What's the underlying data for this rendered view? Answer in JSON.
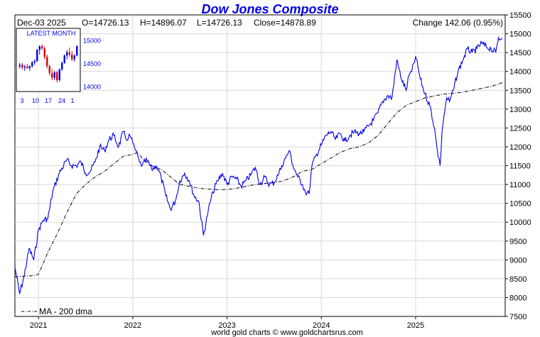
{
  "chart_data": {
    "type": "line",
    "title": "Dow Jones Composite",
    "date_label": "Dec-03  2025",
    "ohlc": {
      "open": "O=14726.13",
      "high": "H=14896.07",
      "low": "L=14726.13",
      "close": "Close=14878.89"
    },
    "change_text": "Change 142.06 (0.95%)",
    "y_ticks": [
      7500,
      8000,
      8500,
      9000,
      9500,
      10000,
      10500,
      11000,
      11500,
      12000,
      12500,
      13000,
      13500,
      14000,
      14500,
      15000,
      15500
    ],
    "ylim": [
      7500,
      15500
    ],
    "xlim": [
      2020.75,
      2025.95
    ],
    "x_ticks": [
      {
        "label": "2021",
        "x": 2021.0
      },
      {
        "label": "2022",
        "x": 2022.0
      },
      {
        "label": "2023",
        "x": 2023.0
      },
      {
        "label": "2024",
        "x": 2024.0
      },
      {
        "label": "2025",
        "x": 2025.0
      }
    ],
    "grid": true,
    "legend": {
      "position": "bottom-left",
      "items": [
        {
          "label": "MA - 200 dma",
          "style": "dash-dot",
          "color": "#000000"
        }
      ]
    },
    "series": [
      {
        "name": "Dow Jones Composite",
        "color": "#0000ee",
        "x": [
          2020.75,
          2020.8,
          2020.85,
          2020.9,
          2020.95,
          2021.0,
          2021.05,
          2021.1,
          2021.15,
          2021.22,
          2021.3,
          2021.35,
          2021.4,
          2021.45,
          2021.5,
          2021.55,
          2021.6,
          2021.65,
          2021.7,
          2021.75,
          2021.8,
          2021.85,
          2021.9,
          2021.93,
          2021.97,
          2022.0,
          2022.03,
          2022.07,
          2022.1,
          2022.15,
          2022.2,
          2022.25,
          2022.3,
          2022.35,
          2022.4,
          2022.45,
          2022.5,
          2022.55,
          2022.6,
          2022.65,
          2022.7,
          2022.75,
          2022.8,
          2022.85,
          2022.9,
          2022.95,
          2023.0,
          2023.05,
          2023.1,
          2023.15,
          2023.2,
          2023.25,
          2023.3,
          2023.35,
          2023.4,
          2023.45,
          2023.5,
          2023.55,
          2023.58,
          2023.62,
          2023.66,
          2023.7,
          2023.75,
          2023.8,
          2023.83,
          2023.87,
          2023.9,
          2023.95,
          2024.0,
          2024.05,
          2024.1,
          2024.15,
          2024.2,
          2024.25,
          2024.3,
          2024.35,
          2024.4,
          2024.45,
          2024.5,
          2024.55,
          2024.6,
          2024.65,
          2024.7,
          2024.75,
          2024.8,
          2024.85,
          2024.9,
          2024.93,
          2024.96,
          2025.0,
          2025.05,
          2025.1,
          2025.15,
          2025.2,
          2025.23,
          2025.26,
          2025.28,
          2025.3,
          2025.33,
          2025.36,
          2025.4,
          2025.45,
          2025.5,
          2025.55,
          2025.6,
          2025.65,
          2025.7,
          2025.75,
          2025.8,
          2025.85,
          2025.88,
          2025.9,
          2025.92
        ],
        "y": [
          8800,
          8100,
          8600,
          9300,
          9000,
          9800,
          10050,
          10100,
          10800,
          11300,
          11650,
          11500,
          11500,
          11600,
          11300,
          11350,
          11600,
          12000,
          11900,
          12200,
          12300,
          12000,
          12400,
          12200,
          12300,
          12100,
          11900,
          11600,
          11500,
          11650,
          11400,
          11500,
          11200,
          10700,
          10350,
          10550,
          11100,
          11300,
          11100,
          10700,
          10550,
          9650,
          10300,
          10800,
          11100,
          11300,
          11000,
          11200,
          11150,
          10950,
          11100,
          11250,
          11450,
          11000,
          11200,
          11000,
          11050,
          11300,
          11500,
          11700,
          11900,
          11500,
          11200,
          11000,
          10800,
          10750,
          11500,
          11800,
          12050,
          12300,
          12400,
          12200,
          12350,
          12150,
          12300,
          12400,
          12350,
          12400,
          12550,
          12700,
          12900,
          13200,
          13350,
          13300,
          14300,
          13800,
          13500,
          13900,
          14000,
          14400,
          13800,
          13400,
          13100,
          12500,
          11900,
          11500,
          12400,
          12800,
          13300,
          13200,
          13500,
          14000,
          14300,
          14600,
          14500,
          14600,
          14750,
          14650,
          14600,
          14500,
          14900,
          14850,
          14880
        ]
      },
      {
        "name": "MA - 200 dma",
        "color": "#000000",
        "style": "dash-dot",
        "x": [
          2020.75,
          2020.85,
          2020.95,
          2021.0,
          2021.1,
          2021.2,
          2021.3,
          2021.4,
          2021.5,
          2021.6,
          2021.7,
          2021.8,
          2021.9,
          2022.0,
          2022.05,
          2022.1,
          2022.2,
          2022.3,
          2022.4,
          2022.5,
          2022.6,
          2022.7,
          2022.8,
          2022.9,
          2023.0,
          2023.1,
          2023.2,
          2023.3,
          2023.4,
          2023.5,
          2023.6,
          2023.7,
          2023.8,
          2023.9,
          2024.0,
          2024.1,
          2024.2,
          2024.3,
          2024.4,
          2024.5,
          2024.6,
          2024.7,
          2024.8,
          2024.9,
          2025.0,
          2025.1,
          2025.2,
          2025.3,
          2025.4,
          2025.5,
          2025.6,
          2025.7,
          2025.8,
          2025.92
        ],
        "y": [
          8550,
          8570,
          8580,
          8620,
          9200,
          9700,
          10250,
          10750,
          11000,
          11200,
          11350,
          11550,
          11750,
          11800,
          11850,
          11700,
          11500,
          11400,
          11200,
          11000,
          10950,
          10900,
          10880,
          10860,
          10870,
          10900,
          10950,
          11000,
          11030,
          11050,
          11100,
          11200,
          11350,
          11400,
          11550,
          11700,
          11850,
          11950,
          12000,
          12100,
          12300,
          12600,
          12900,
          13100,
          13200,
          13300,
          13350,
          13400,
          13420,
          13450,
          13500,
          13550,
          13600,
          13700
        ]
      }
    ]
  },
  "inset": {
    "label": "LATEST MONTH",
    "y_ticks": [
      14000,
      14500,
      15000
    ],
    "ylim": [
      13950,
      15050
    ],
    "x_ticks": [
      "3",
      "10",
      "17",
      "24",
      "1"
    ],
    "candles": [
      {
        "o": 14450,
        "h": 14520,
        "l": 14400,
        "c": 14480
      },
      {
        "o": 14480,
        "h": 14520,
        "l": 14380,
        "c": 14420
      },
      {
        "o": 14420,
        "h": 14480,
        "l": 14350,
        "c": 14440
      },
      {
        "o": 14440,
        "h": 14500,
        "l": 14390,
        "c": 14410
      },
      {
        "o": 14410,
        "h": 14470,
        "l": 14350,
        "c": 14450
      },
      {
        "o": 14450,
        "h": 14560,
        "l": 14420,
        "c": 14530
      },
      {
        "o": 14530,
        "h": 14600,
        "l": 14480,
        "c": 14560
      },
      {
        "o": 14560,
        "h": 14820,
        "l": 14540,
        "c": 14800
      },
      {
        "o": 14800,
        "h": 14900,
        "l": 14700,
        "c": 14880
      },
      {
        "o": 14880,
        "h": 14920,
        "l": 14800,
        "c": 14830
      },
      {
        "o": 14830,
        "h": 14870,
        "l": 14600,
        "c": 14650
      },
      {
        "o": 14650,
        "h": 14700,
        "l": 14400,
        "c": 14450
      },
      {
        "o": 14450,
        "h": 14480,
        "l": 14250,
        "c": 14300
      },
      {
        "o": 14300,
        "h": 14380,
        "l": 14150,
        "c": 14200
      },
      {
        "o": 14200,
        "h": 14350,
        "l": 14150,
        "c": 14320
      },
      {
        "o": 14320,
        "h": 14350,
        "l": 14100,
        "c": 14150
      },
      {
        "o": 14150,
        "h": 14400,
        "l": 14120,
        "c": 14380
      },
      {
        "o": 14380,
        "h": 14550,
        "l": 14350,
        "c": 14520
      },
      {
        "o": 14520,
        "h": 14700,
        "l": 14500,
        "c": 14680
      },
      {
        "o": 14680,
        "h": 14800,
        "l": 14600,
        "c": 14750
      },
      {
        "o": 14750,
        "h": 14850,
        "l": 14650,
        "c": 14700
      },
      {
        "o": 14700,
        "h": 14780,
        "l": 14560,
        "c": 14600
      },
      {
        "o": 14600,
        "h": 14700,
        "l": 14550,
        "c": 14680
      },
      {
        "o": 14680,
        "h": 14900,
        "l": 14660,
        "c": 14880
      }
    ]
  },
  "footer": {
    "credit": "world gold charts © www.goldchartsrus.com"
  },
  "colors": {
    "price": "#0000ee",
    "ma": "#000000",
    "title": "#0000ee",
    "inset_up": "#0000ee",
    "inset_down": "#dd0000",
    "grid": "#d8d8d8"
  }
}
